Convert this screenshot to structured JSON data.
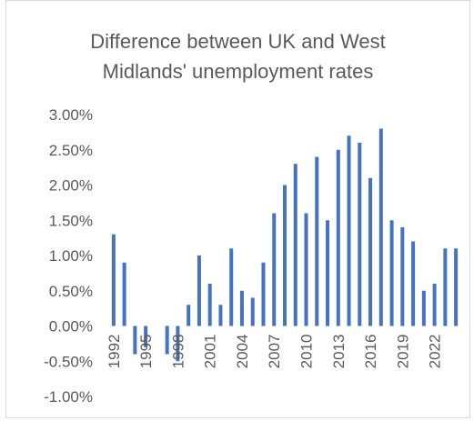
{
  "chart_data": {
    "type": "bar",
    "title_lines": [
      "Difference between UK and West",
      "Midlands' unemployment rates"
    ],
    "categories": [
      "1992",
      "1993",
      "1994",
      "1995",
      "1996",
      "1997",
      "1998",
      "1999",
      "2000",
      "2001",
      "2002",
      "2003",
      "2004",
      "2005",
      "2006",
      "2007",
      "2008",
      "2009",
      "2010",
      "2011",
      "2012",
      "2013",
      "2014",
      "2015",
      "2016",
      "2017",
      "2018",
      "2019",
      "2020",
      "2021",
      "2022",
      "2023",
      "2024"
    ],
    "x_tick_labels": [
      "1992",
      "1995",
      "1998",
      "2001",
      "2004",
      "2007",
      "2010",
      "2013",
      "2016",
      "2019",
      "2022"
    ],
    "values": [
      1.3,
      0.9,
      -0.4,
      -0.3,
      0.0,
      -0.4,
      -0.5,
      0.3,
      1.0,
      0.6,
      0.3,
      1.1,
      0.5,
      0.4,
      0.9,
      1.6,
      2.0,
      2.3,
      1.6,
      2.4,
      1.5,
      2.5,
      2.7,
      2.6,
      2.1,
      2.8,
      1.5,
      1.4,
      1.2,
      0.5,
      0.6,
      1.1,
      1.1
    ],
    "y_ticks": [
      "3.00%",
      "2.50%",
      "2.00%",
      "1.50%",
      "1.00%",
      "0.50%",
      "0.00%",
      "-0.50%",
      "-1.00%"
    ],
    "ylim": [
      -1.0,
      3.0
    ],
    "bar_color": "#4472c4",
    "grid": false,
    "legend": "none"
  }
}
